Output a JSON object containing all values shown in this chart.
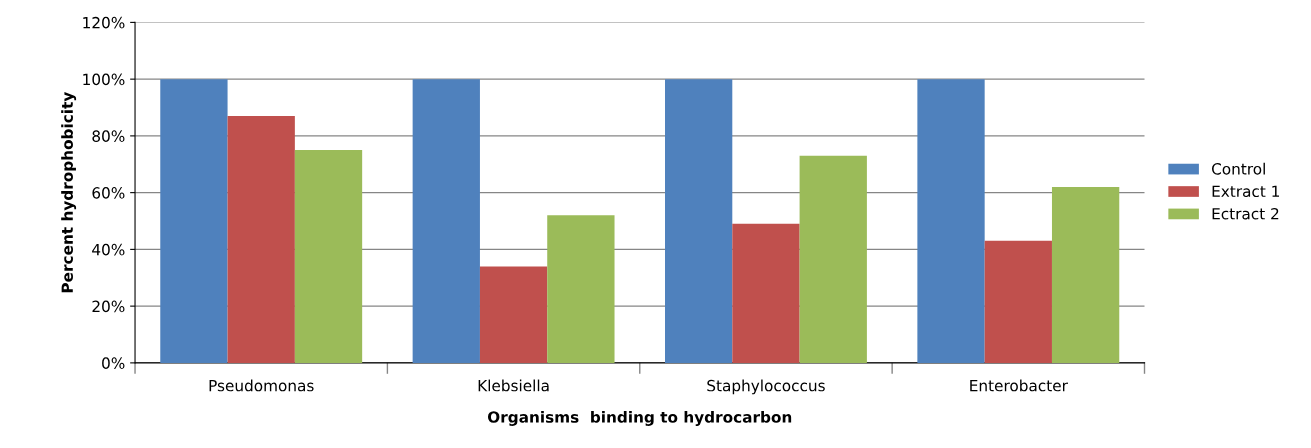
{
  "chart_data": {
    "type": "bar",
    "xlabel": "Organisms  binding to hydrocarbon",
    "ylabel": "Percent hydrophobicity",
    "categories": [
      "Pseudomonas",
      "Klebsiella",
      "Staphylococcus",
      "Enterobacter"
    ],
    "series": [
      {
        "name": "Control",
        "color": "#4f81bd",
        "values": [
          100,
          100,
          100,
          100
        ]
      },
      {
        "name": "Extract 1",
        "color": "#c0504d",
        "values": [
          87,
          34,
          49,
          43
        ]
      },
      {
        "name": "Ectract 2",
        "color": "#9bbb59",
        "values": [
          75,
          52,
          73,
          62
        ]
      }
    ],
    "ylim": [
      0,
      120
    ],
    "yticks": [
      {
        "value": 0,
        "label": "0%"
      },
      {
        "value": 20,
        "label": "20%"
      },
      {
        "value": 40,
        "label": "40%"
      },
      {
        "value": 60,
        "label": "60%"
      },
      {
        "value": 80,
        "label": "80%"
      },
      {
        "value": 100,
        "label": "100%"
      },
      {
        "value": 120,
        "label": "120%"
      }
    ],
    "grid": "y",
    "legend": "right"
  }
}
